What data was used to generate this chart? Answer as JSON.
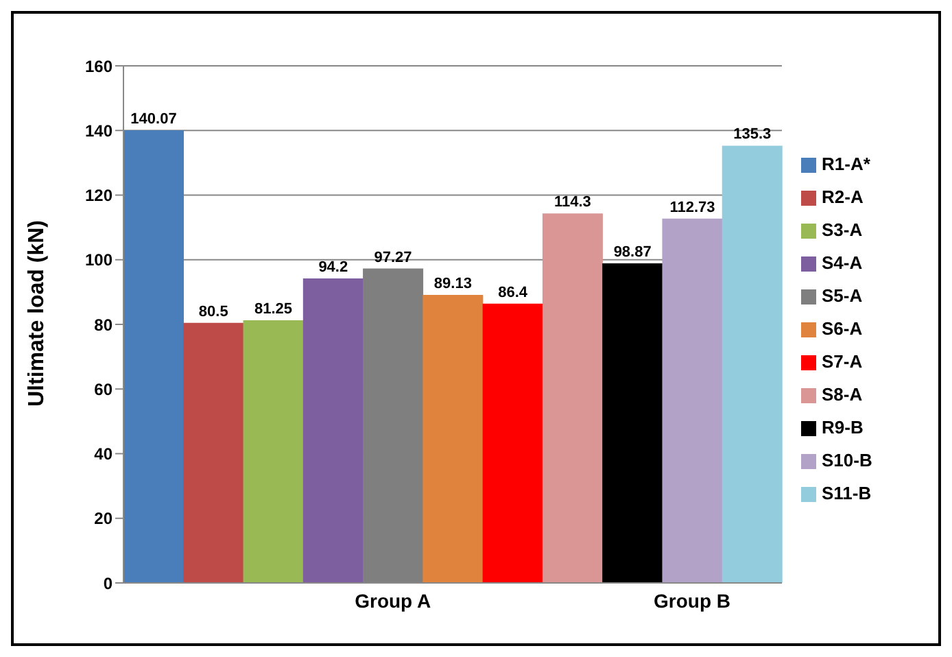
{
  "chart_data": {
    "type": "bar",
    "stacked": true,
    "ylabel": "Ultimate load (kN)",
    "categories": [
      null,
      null,
      null,
      null,
      "Group A",
      null,
      null,
      null,
      null,
      "Group B",
      null
    ],
    "series": [
      {
        "name": "R1-A*",
        "color": "#4a7ebb",
        "values": [
          140.07,
          null,
          null,
          null,
          null,
          null,
          null,
          null,
          null,
          null,
          null
        ]
      },
      {
        "name": "R2-A",
        "color": "#be4b48",
        "values": [
          null,
          80.5,
          null,
          null,
          null,
          null,
          null,
          null,
          null,
          null,
          null
        ]
      },
      {
        "name": "S3-A",
        "color": "#98b954",
        "values": [
          null,
          null,
          81.25,
          null,
          null,
          null,
          null,
          null,
          null,
          null,
          null
        ]
      },
      {
        "name": "S4-A",
        "color": "#7d5fa0",
        "values": [
          null,
          null,
          null,
          94.2,
          null,
          null,
          null,
          null,
          null,
          null,
          null
        ]
      },
      {
        "name": "S5-A",
        "color": "#7f7f7f",
        "values": [
          null,
          null,
          null,
          null,
          97.27,
          null,
          null,
          null,
          null,
          null,
          null
        ]
      },
      {
        "name": "S6-A",
        "color": "#e0843d",
        "values": [
          null,
          null,
          null,
          null,
          null,
          89.13,
          null,
          null,
          null,
          null,
          null
        ]
      },
      {
        "name": "S7-A",
        "color": "#ff0000",
        "values": [
          null,
          null,
          null,
          null,
          null,
          null,
          86.4,
          null,
          null,
          null,
          null
        ]
      },
      {
        "name": "S8-A",
        "color": "#d99694",
        "values": [
          null,
          null,
          null,
          null,
          null,
          null,
          null,
          114.3,
          null,
          null,
          null
        ]
      },
      {
        "name": "R9-B",
        "color": "#000000",
        "values": [
          null,
          null,
          null,
          null,
          null,
          null,
          null,
          null,
          98.87,
          null,
          null
        ]
      },
      {
        "name": "S10-B",
        "color": "#b3a2c7",
        "values": [
          null,
          null,
          null,
          null,
          null,
          null,
          null,
          null,
          null,
          112.73,
          null
        ]
      },
      {
        "name": "S11-B",
        "color": "#93cddd",
        "values": [
          null,
          null,
          null,
          null,
          null,
          null,
          null,
          null,
          null,
          null,
          135.3
        ]
      }
    ],
    "ylim": [
      0,
      160
    ],
    "yticks": [
      0,
      20,
      40,
      60,
      80,
      100,
      120,
      140,
      160
    ],
    "grid": "y",
    "legend": "right",
    "data_labels": true
  }
}
